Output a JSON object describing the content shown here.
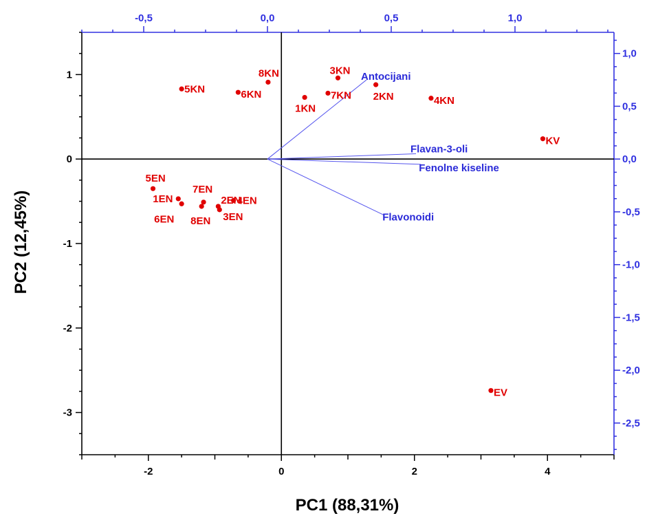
{
  "chart_data": {
    "type": "scatter",
    "xlabel": "PC1 (88,31%)",
    "ylabel": "PC2 (12,45%)",
    "xlim": [
      -3,
      5
    ],
    "ylim": [
      -3.5,
      1.5
    ],
    "x_ticks": [
      -2,
      0,
      2,
      4
    ],
    "y_ticks": [
      1,
      0,
      -1,
      -2,
      -3
    ],
    "x2lim": [
      -0.75,
      1.4
    ],
    "y2lim": [
      -2.8,
      1.2
    ],
    "x2_ticks": [
      "-0,5",
      "0,0",
      "0,5",
      "1,0"
    ],
    "y2_ticks": [
      "1,0",
      "0,5",
      "0,0",
      "-0,5",
      "-1,0",
      "-1,5",
      "-2,0",
      "-2,5"
    ],
    "scores": [
      {
        "label": "5KN",
        "x": -1.5,
        "y": 0.83
      },
      {
        "label": "6KN",
        "x": -0.65,
        "y": 0.79
      },
      {
        "label": "8KN",
        "x": -0.2,
        "y": 0.91
      },
      {
        "label": "3KN",
        "x": 0.85,
        "y": 0.96
      },
      {
        "label": "7KN",
        "x": 0.7,
        "y": 0.78
      },
      {
        "label": "1KN",
        "x": 0.35,
        "y": 0.73
      },
      {
        "label": "2KN",
        "x": 1.42,
        "y": 0.88
      },
      {
        "label": "4KN",
        "x": 2.25,
        "y": 0.72
      },
      {
        "label": "KV",
        "x": 3.93,
        "y": 0.24
      },
      {
        "label": "5EN",
        "x": -1.93,
        "y": -0.35
      },
      {
        "label": "1EN",
        "x": -1.55,
        "y": -0.47
      },
      {
        "label": "6EN",
        "x": -1.5,
        "y": -0.53
      },
      {
        "label": "7EN",
        "x": -1.17,
        "y": -0.51
      },
      {
        "label": "8EN",
        "x": -1.2,
        "y": -0.56
      },
      {
        "label": "2EN",
        "x": -0.95,
        "y": -0.56
      },
      {
        "label": "3EN",
        "x": -0.93,
        "y": -0.6
      },
      {
        "label": "4EN",
        "x": -0.72,
        "y": -0.49
      },
      {
        "label": "EV",
        "x": 3.15,
        "y": -2.74
      }
    ],
    "loadings": [
      {
        "label": "Antocijani",
        "x": 0.4,
        "y": 0.75
      },
      {
        "label": "Flavan-3-oli",
        "x": 0.6,
        "y": 0.05
      },
      {
        "label": "Fenolne kiseline",
        "x": 0.62,
        "y": -0.05
      },
      {
        "label": "Flavonoidi",
        "x": 0.47,
        "y": -0.53
      }
    ],
    "grid": false,
    "colors": {
      "scores": "#e00000",
      "loadings": "#2a2ad8",
      "secondary_axes": "#3030e0"
    }
  }
}
